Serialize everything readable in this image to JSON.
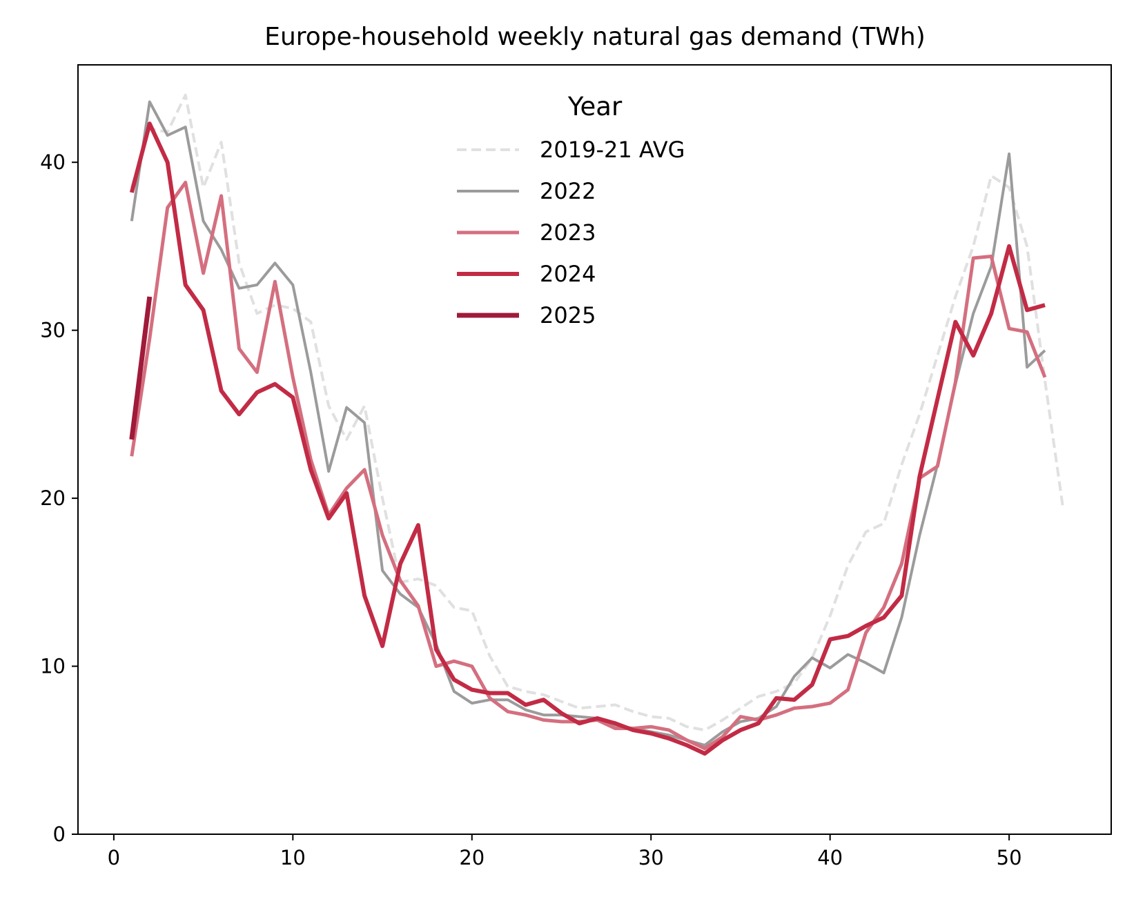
{
  "chart_data": {
    "type": "line",
    "title": "Europe-household weekly natural gas demand (TWh)",
    "xlabel": "",
    "ylabel": "",
    "xlim": [
      -2,
      55.7
    ],
    "ylim": [
      0,
      45.8
    ],
    "xticks": [
      0,
      10,
      20,
      30,
      40,
      50
    ],
    "yticks": [
      0,
      10,
      20,
      30,
      40
    ],
    "grid": false,
    "legend": {
      "title": "Year",
      "placement": "upper center"
    },
    "series": [
      {
        "name": "2019-21 AVG",
        "color": "#e0e0e0",
        "dash": true,
        "width": 4,
        "x": [
          1,
          2,
          3,
          4,
          5,
          6,
          7,
          8,
          9,
          10,
          11,
          12,
          13,
          14,
          15,
          16,
          17,
          18,
          19,
          20,
          21,
          22,
          23,
          24,
          25,
          26,
          27,
          28,
          29,
          30,
          31,
          32,
          33,
          34,
          35,
          36,
          37,
          38,
          39,
          40,
          41,
          42,
          43,
          44,
          45,
          46,
          47,
          48,
          49,
          50,
          51,
          52,
          53
        ],
        "values": [
          38.5,
          42.0,
          41.8,
          44.0,
          38.5,
          41.2,
          34.0,
          31.0,
          31.5,
          31.3,
          30.5,
          25.5,
          23.5,
          25.5,
          20.0,
          15.0,
          15.2,
          14.8,
          13.5,
          13.3,
          10.6,
          8.8,
          8.5,
          8.3,
          7.9,
          7.5,
          7.6,
          7.7,
          7.3,
          7.0,
          6.9,
          6.4,
          6.2,
          6.8,
          7.5,
          8.2,
          8.5,
          9.0,
          10.5,
          13.0,
          16.0,
          18.0,
          18.5,
          22.0,
          25.0,
          28.5,
          32.0,
          35.0,
          39.2,
          38.5,
          35.0,
          27.0,
          19.5
        ]
      },
      {
        "name": "2022",
        "color": "#9b9b9b",
        "dash": false,
        "width": 4,
        "x": [
          1,
          2,
          3,
          4,
          5,
          6,
          7,
          8,
          9,
          10,
          11,
          12,
          13,
          14,
          15,
          16,
          17,
          18,
          19,
          20,
          21,
          22,
          23,
          24,
          25,
          26,
          27,
          28,
          29,
          30,
          31,
          32,
          33,
          34,
          35,
          36,
          37,
          38,
          39,
          40,
          41,
          42,
          43,
          44,
          45,
          46,
          47,
          48,
          49,
          50,
          51,
          52
        ],
        "values": [
          36.5,
          43.6,
          41.6,
          42.1,
          36.5,
          34.8,
          32.5,
          32.7,
          34.0,
          32.7,
          27.5,
          21.6,
          25.4,
          24.5,
          15.7,
          14.3,
          13.5,
          11.3,
          8.5,
          7.8,
          8.0,
          8.0,
          7.4,
          7.1,
          7.1,
          7.0,
          6.9,
          6.5,
          6.3,
          6.1,
          5.9,
          5.6,
          5.3,
          6.1,
          6.7,
          6.9,
          7.6,
          9.4,
          10.5,
          9.9,
          10.7,
          10.2,
          9.6,
          12.9,
          17.8,
          22.0,
          26.8,
          31.0,
          33.8,
          40.5,
          27.8,
          28.8
        ]
      },
      {
        "name": "2023",
        "color": "#d46f7f",
        "dash": false,
        "width": 5,
        "x": [
          1,
          2,
          3,
          4,
          5,
          6,
          7,
          8,
          9,
          10,
          11,
          12,
          13,
          14,
          15,
          16,
          17,
          18,
          19,
          20,
          21,
          22,
          23,
          24,
          25,
          26,
          27,
          28,
          29,
          30,
          31,
          32,
          33,
          34,
          35,
          36,
          37,
          38,
          39,
          40,
          41,
          42,
          43,
          44,
          45,
          46,
          47,
          48,
          49,
          50,
          51,
          52
        ],
        "values": [
          22.5,
          29.5,
          37.3,
          38.8,
          33.4,
          38.0,
          28.9,
          27.5,
          32.9,
          27.2,
          22.3,
          19.0,
          20.6,
          21.7,
          17.8,
          15.1,
          13.6,
          10.0,
          10.3,
          10.0,
          8.1,
          7.3,
          7.1,
          6.8,
          6.7,
          6.7,
          6.8,
          6.3,
          6.3,
          6.4,
          6.2,
          5.6,
          5.1,
          5.8,
          7.0,
          6.8,
          7.1,
          7.5,
          7.6,
          7.8,
          8.6,
          12.0,
          13.5,
          16.1,
          21.2,
          21.9,
          26.9,
          34.3,
          34.4,
          30.1,
          29.9,
          27.2
        ]
      },
      {
        "name": "2024",
        "color": "#c22b45",
        "dash": false,
        "width": 6,
        "x": [
          1,
          2,
          3,
          4,
          5,
          6,
          7,
          8,
          9,
          10,
          11,
          12,
          13,
          14,
          15,
          16,
          17,
          18,
          19,
          20,
          21,
          22,
          23,
          24,
          25,
          26,
          27,
          28,
          29,
          30,
          31,
          32,
          33,
          34,
          35,
          36,
          37,
          38,
          39,
          40,
          41,
          42,
          43,
          44,
          45,
          46,
          47,
          48,
          49,
          50,
          51,
          52
        ],
        "values": [
          38.2,
          42.3,
          40.0,
          32.7,
          31.2,
          26.4,
          25.0,
          26.3,
          26.8,
          26.0,
          21.7,
          18.8,
          20.3,
          14.2,
          11.2,
          16.1,
          18.4,
          11.0,
          9.2,
          8.6,
          8.4,
          8.4,
          7.7,
          8.0,
          7.2,
          6.6,
          6.9,
          6.6,
          6.2,
          6.0,
          5.7,
          5.3,
          4.8,
          5.6,
          6.2,
          6.6,
          8.1,
          8.0,
          8.9,
          11.6,
          11.8,
          12.4,
          12.9,
          14.2,
          21.3,
          25.9,
          30.5,
          28.5,
          31.0,
          35.0,
          31.2,
          31.5
        ]
      },
      {
        "name": "2025",
        "color": "#a01a3a",
        "dash": false,
        "width": 7,
        "x": [
          1,
          2
        ],
        "values": [
          23.5,
          32.0
        ]
      }
    ]
  }
}
